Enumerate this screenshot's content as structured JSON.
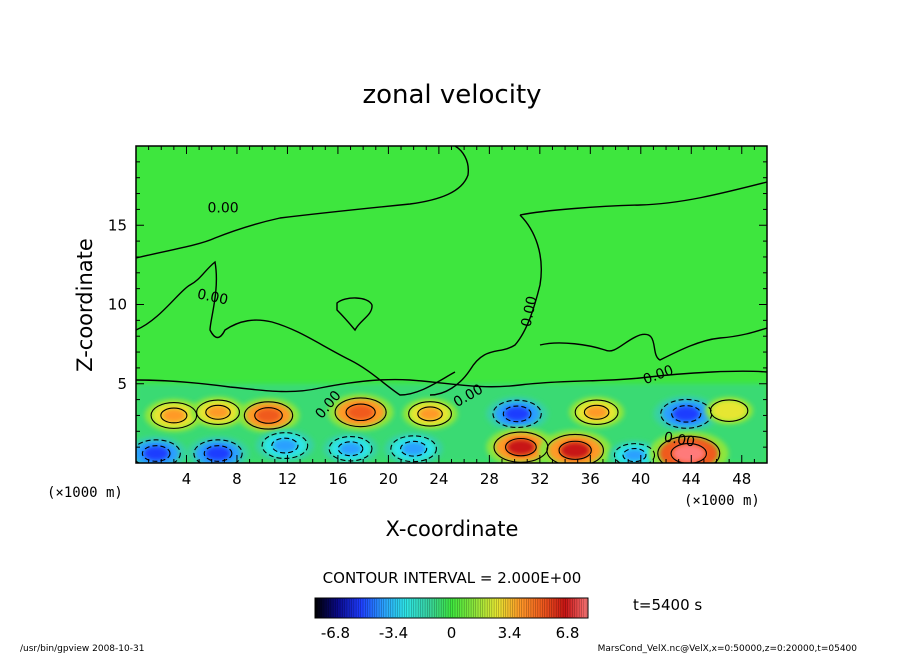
{
  "chart_data": {
    "type": "heatmap",
    "title": "zonal velocity",
    "xlabel": "X-coordinate",
    "ylabel": "Z-coordinate",
    "x_unit": "(×1000 m)",
    "y_unit": "(×1000 m)",
    "xlim": [
      0,
      50
    ],
    "ylim": [
      0,
      20
    ],
    "x_ticks": [
      "4",
      "8",
      "12",
      "16",
      "20",
      "24",
      "28",
      "32",
      "36",
      "40",
      "44",
      "48"
    ],
    "y_ticks": [
      "5",
      "10",
      "15"
    ],
    "contour_interval_text": "CONTOUR INTERVAL = 2.000E+00",
    "contour_labels": [
      "0.00",
      "0.00",
      "0.00",
      "0.00",
      "0.00",
      "0.00",
      "0.00"
    ],
    "time_label": "t=5400 s",
    "colorbar": {
      "range": [
        -8,
        8
      ],
      "ticks": [
        "-6.8",
        "-3.4",
        "0",
        "3.4",
        "6.8"
      ],
      "colors": [
        "#000000",
        "#0a0a8c",
        "#1e3cff",
        "#2aa0ff",
        "#2ee6e6",
        "#38d2a0",
        "#3ee63e",
        "#8ce63c",
        "#e6e632",
        "#ff9a28",
        "#f05a1e",
        "#c81414",
        "#ff7a7a"
      ]
    },
    "cells_legend": {
      "strong_neg": -6.0,
      "neg": -3.5,
      "weak_neg": -1.5,
      "weak_pos": 1.5,
      "pos": 3.5,
      "strong_pos": 6.0
    },
    "features": [
      {
        "x": 3.0,
        "z": 3.0,
        "value": 4.5
      },
      {
        "x": 6.5,
        "z": 3.2,
        "value": 4.0
      },
      {
        "x": 10.5,
        "z": 3.0,
        "value": 5.0
      },
      {
        "x": 17.8,
        "z": 3.2,
        "value": 5.5
      },
      {
        "x": 23.3,
        "z": 3.1,
        "value": 4.0
      },
      {
        "x": 30.2,
        "z": 3.1,
        "value": -5.0
      },
      {
        "x": 36.5,
        "z": 3.2,
        "value": 4.0
      },
      {
        "x": 43.6,
        "z": 3.1,
        "value": -5.5
      },
      {
        "x": 47.0,
        "z": 3.3,
        "value": 3.0
      },
      {
        "x": 1.6,
        "z": 0.6,
        "value": -5.0
      },
      {
        "x": 6.5,
        "z": 0.6,
        "value": -5.0
      },
      {
        "x": 11.8,
        "z": 1.1,
        "value": -4.5
      },
      {
        "x": 17.0,
        "z": 0.9,
        "value": -4.0
      },
      {
        "x": 22.0,
        "z": 0.9,
        "value": -4.5
      },
      {
        "x": 30.5,
        "z": 1.0,
        "value": 6.0
      },
      {
        "x": 34.8,
        "z": 0.8,
        "value": 6.5
      },
      {
        "x": 39.5,
        "z": 0.5,
        "value": -3.5
      },
      {
        "x": 43.8,
        "z": 0.6,
        "value": 7.5
      }
    ]
  },
  "footer": {
    "left": "/usr/bin/gpview   2008-10-31",
    "right": "MarsCond_VelX.nc@VelX,x=0:50000,z=0:20000,t=05400"
  }
}
